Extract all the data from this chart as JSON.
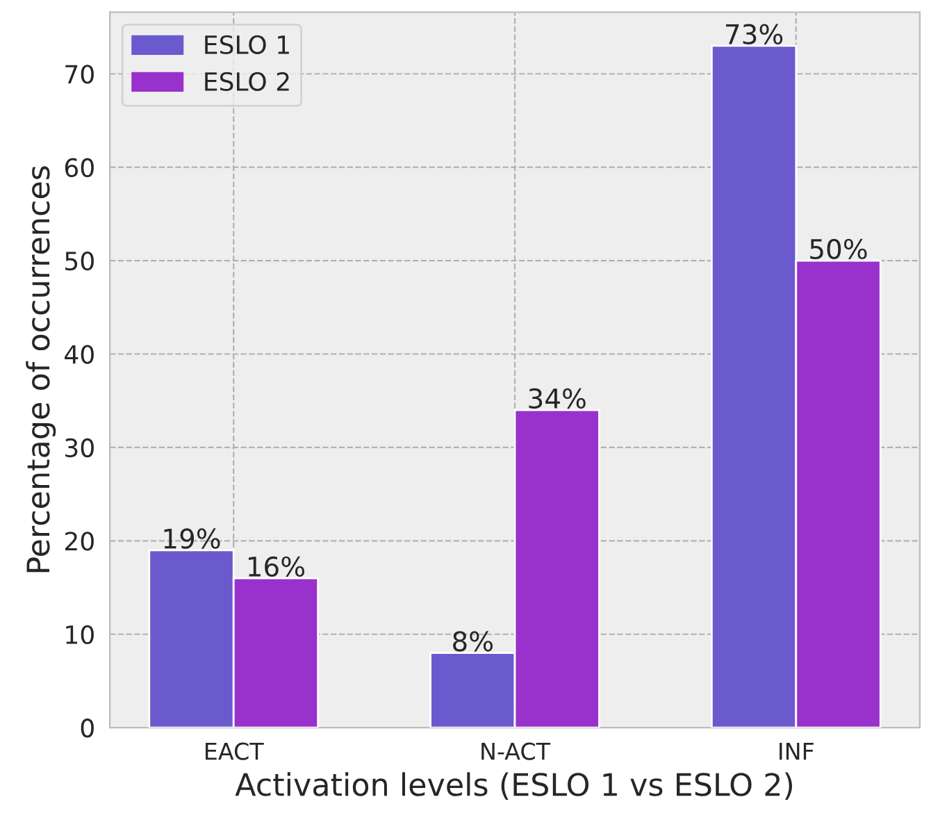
{
  "chart_data": {
    "type": "bar",
    "xlabel": "Activation levels (ESLO 1 vs ESLO 2)",
    "ylabel": "Percentage of occurrences",
    "categories": [
      "EACT",
      "N-ACT",
      "INF"
    ],
    "series": [
      {
        "name": "ESLO 1",
        "color": "#6a5acd",
        "values": [
          19,
          8,
          73
        ],
        "value_labels": [
          "19%",
          "8%",
          "73%"
        ]
      },
      {
        "name": "ESLO 2",
        "color": "#9932cc",
        "values": [
          16,
          34,
          50
        ],
        "value_labels": [
          "16%",
          "34%",
          "50%"
        ]
      }
    ],
    "ylim": [
      0,
      76.6
    ],
    "yticks": [
      0,
      10,
      20,
      30,
      40,
      50,
      60,
      70
    ],
    "grid": true,
    "legend": "top left"
  }
}
